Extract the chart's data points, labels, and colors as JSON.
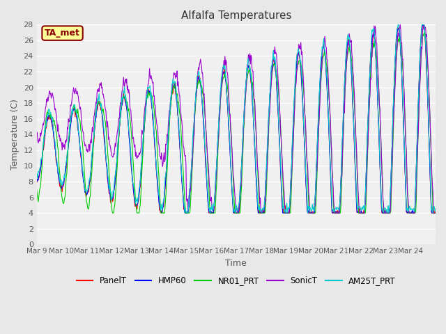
{
  "title": "Alfalfa Temperatures",
  "xlabel": "Time",
  "ylabel": "Temperature (C)",
  "ylim": [
    0,
    28
  ],
  "yticks": [
    0,
    2,
    4,
    6,
    8,
    10,
    12,
    14,
    16,
    18,
    20,
    22,
    24,
    26,
    28
  ],
  "x_labels": [
    "Mar 9",
    "Mar 10",
    "Mar 11",
    "Mar 12",
    "Mar 13",
    "Mar 14",
    "Mar 15",
    "Mar 16",
    "Mar 17",
    "Mar 18",
    "Mar 19",
    "Mar 20",
    "Mar 21",
    "Mar 22",
    "Mar 23",
    "Mar 24"
  ],
  "annotation_text": "TA_met",
  "annotation_color": "#8B0000",
  "annotation_bg": "#FFFF99",
  "series_colors": {
    "PanelT": "#FF0000",
    "HMP60": "#0000FF",
    "NR01_PRT": "#00CC00",
    "SonicT": "#9900CC",
    "AM25T_PRT": "#00CCCC"
  },
  "bg_color": "#E8E8E8",
  "plot_bg": "#F0F0F0"
}
